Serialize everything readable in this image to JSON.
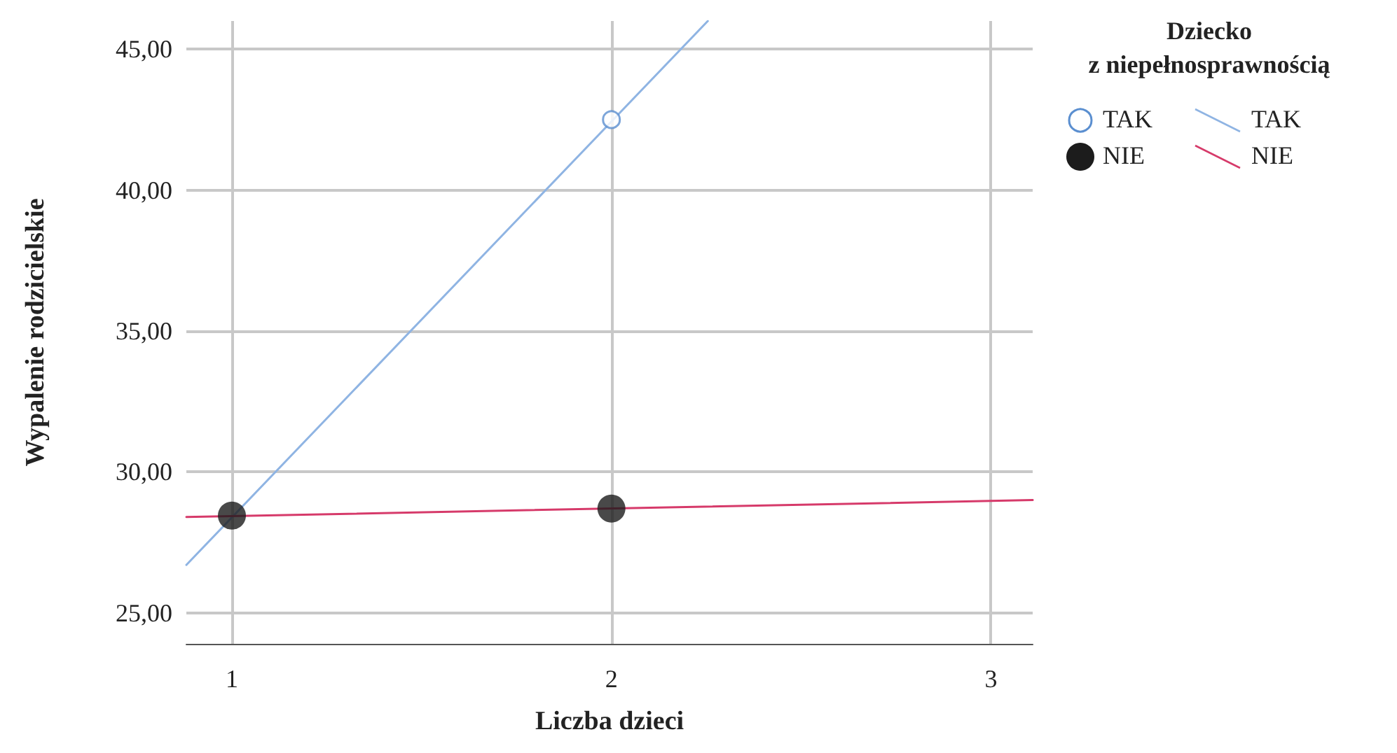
{
  "chart_data": {
    "type": "scatter",
    "xlabel": "Liczba dzieci",
    "ylabel": "Wypalenie rodzicielskie",
    "legend_title": "Dziecko\nz niepełnosprawnością",
    "legend": "top right",
    "grid": true,
    "xlim": [
      0.88,
      3.11
    ],
    "xticks": [
      1,
      2,
      3
    ],
    "ylim": [
      23.9,
      46.0
    ],
    "yticks": [
      {
        "value": 25,
        "label": "25,00"
      },
      {
        "value": 30,
        "label": "30,00"
      },
      {
        "value": 35,
        "label": "35,00"
      },
      {
        "value": 40,
        "label": "40,00"
      },
      {
        "value": 45,
        "label": "45,00"
      }
    ],
    "series": [
      {
        "name": "TAK",
        "marker": "circle",
        "color": "#5b8fd0",
        "x": [
          2
        ],
        "values": [
          42.5
        ]
      },
      {
        "name": "NIE",
        "marker": "circle",
        "color": "#1c1c1c",
        "x": [
          1,
          2
        ],
        "values": [
          28.45,
          28.7
        ]
      },
      {
        "name": "TAK",
        "type": "line",
        "marker": "none",
        "color": "#8fb4e3",
        "x": [
          0.88,
          2.254
        ],
        "values": [
          26.7,
          46.0
        ]
      },
      {
        "name": "NIE",
        "type": "line",
        "marker": "none",
        "color": "#d63a6a",
        "x": [
          0.88,
          3.11
        ],
        "values": [
          28.4,
          29.0
        ]
      }
    ]
  }
}
